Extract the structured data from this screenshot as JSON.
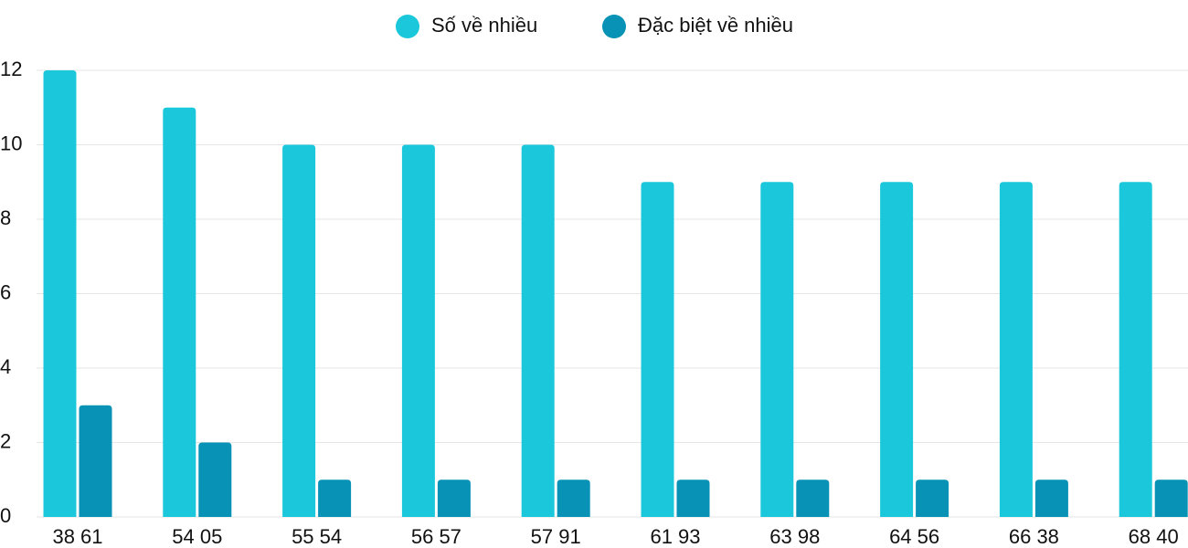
{
  "chart_data": {
    "type": "bar",
    "categories": [
      "38 61",
      "54 05",
      "55 54",
      "56 57",
      "57 91",
      "61 93",
      "63 98",
      "64 56",
      "66 38",
      "68 40"
    ],
    "series": [
      {
        "name": "Số về nhiều",
        "color": "#1bc8db",
        "values": [
          12,
          11,
          10,
          10,
          10,
          9,
          9,
          9,
          9,
          9
        ]
      },
      {
        "name": "Đặc biệt về nhiều",
        "color": "#0792b6",
        "values": [
          3,
          2,
          1,
          1,
          1,
          1,
          1,
          1,
          1,
          1
        ]
      }
    ],
    "ylim": [
      0,
      12
    ],
    "yticks": [
      0,
      2,
      4,
      6,
      8,
      10,
      12
    ],
    "grid": true,
    "legend": "top"
  }
}
